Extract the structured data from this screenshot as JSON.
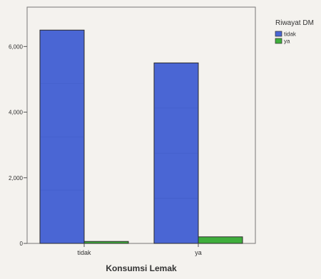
{
  "chart_data": {
    "type": "bar",
    "title": "",
    "xlabel": "Konsumsi Lemak",
    "ylabel": "",
    "categories": [
      "tidak",
      "ya"
    ],
    "series": [
      {
        "name": "tidak",
        "color": "#4a66d4",
        "values": [
          6500,
          5500
        ]
      },
      {
        "name": "ya",
        "color": "#3fae3c",
        "values": [
          60,
          200
        ]
      }
    ],
    "ylim": [
      0,
      7200
    ],
    "yticks": [
      0,
      2000,
      4000,
      6000
    ],
    "ytick_labels": [
      "0",
      "2,000",
      "4,000",
      "6,000"
    ],
    "grid": false,
    "legend": {
      "title": "Riwayat DM",
      "position": "top-right"
    }
  }
}
